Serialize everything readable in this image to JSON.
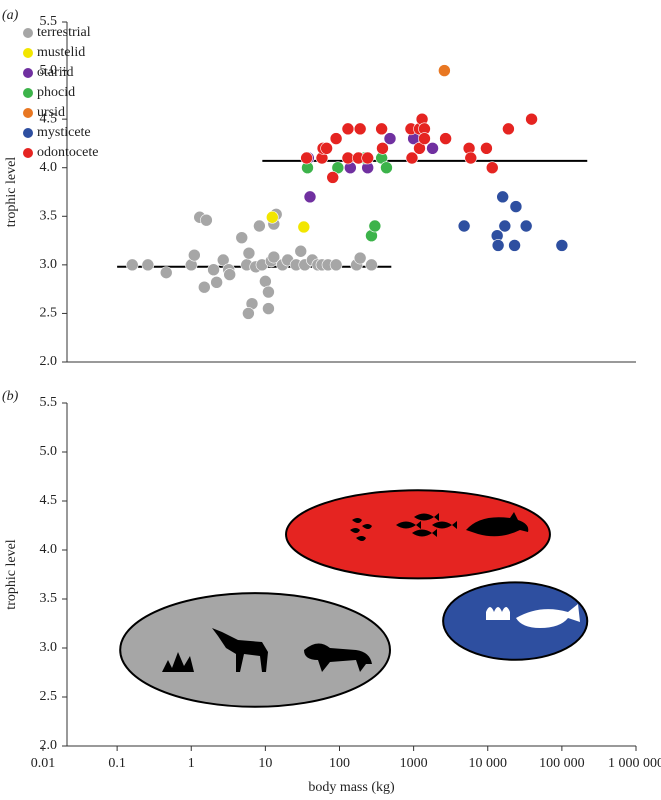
{
  "chart_data": [
    {
      "type": "scatter",
      "panel_label": "(a)",
      "y_label": "trophic level",
      "xlim": [
        0.01,
        1000000
      ],
      "log_x": true,
      "ylim": [
        2.0,
        5.5
      ],
      "yticks": [
        {
          "value": 2,
          "label": "2.0"
        },
        2.5,
        {
          "value": 3,
          "label": "3.0"
        },
        3.5,
        {
          "value": 4,
          "label": "4.0"
        },
        4.5,
        {
          "value": 5,
          "label": "5.0"
        },
        5.5
      ],
      "legend": "upper left",
      "series": [
        {
          "name": "terrestrial",
          "color": "#a6a6a6",
          "x": [
            0.16,
            0.26,
            0.46,
            1.3,
            1.6,
            1.0,
            1.1,
            1.5,
            2.0,
            2.2,
            2.7,
            3.2,
            3.3,
            4.8,
            5.6,
            6.0,
            6.6,
            5.9,
            7.4,
            8.3,
            9,
            10,
            11,
            12,
            13,
            14,
            13,
            11,
            17,
            20,
            26,
            30,
            34,
            43,
            51,
            58,
            70,
            90,
            170,
            190,
            270
          ],
          "y": [
            3.0,
            3.0,
            2.92,
            3.49,
            3.46,
            3.0,
            3.1,
            2.77,
            2.95,
            2.82,
            3.05,
            2.95,
            2.9,
            3.28,
            3.0,
            3.12,
            2.6,
            2.5,
            2.98,
            3.4,
            3.0,
            2.83,
            2.72,
            3.04,
            3.08,
            3.52,
            3.42,
            2.55,
            3.0,
            3.05,
            3.0,
            3.14,
            3.0,
            3.05,
            3.0,
            3.0,
            3.0,
            3.0,
            3.0,
            3.07,
            3.0
          ]
        },
        {
          "name": "mustelid",
          "color": "#f2e600",
          "x": [
            12.4,
            33
          ],
          "y": [
            3.49,
            3.39
          ]
        },
        {
          "name": "otariid",
          "color": "#7030a0",
          "x": [
            40,
            38,
            140,
            240,
            480,
            1000,
            1800
          ],
          "y": [
            3.7,
            4.1,
            4.0,
            4.0,
            4.3,
            4.3,
            4.2
          ]
        },
        {
          "name": "phocid",
          "color": "#3cb34a",
          "x": [
            37,
            95,
            220,
            370,
            430,
            270,
            300
          ],
          "y": [
            4.0,
            4.0,
            4.1,
            4.1,
            4.0,
            3.3,
            3.4
          ]
        },
        {
          "name": "ursid",
          "color": "#e87722",
          "x": [
            2600
          ],
          "y": [
            5.0
          ]
        },
        {
          "name": "mysticete",
          "color": "#2e4fa0",
          "x": [
            4800,
            15900,
            13400,
            13800,
            17000,
            24000,
            23000,
            33000,
            100000
          ],
          "y": [
            3.4,
            3.7,
            3.3,
            3.2,
            3.4,
            3.6,
            3.2,
            3.4,
            3.2
          ]
        },
        {
          "name": "odontocete",
          "color": "#e52421",
          "x": [
            36,
            58,
            60,
            67,
            90,
            81,
            130,
            130,
            190,
            180,
            370,
            380,
            240,
            920,
            950,
            1200,
            1300,
            1400,
            1200,
            1400,
            2700,
            5600,
            5900,
            9600,
            11500,
            19000,
            39000
          ],
          "y": [
            4.1,
            4.1,
            4.2,
            4.2,
            4.3,
            3.9,
            4.4,
            4.1,
            4.4,
            4.1,
            4.4,
            4.2,
            4.1,
            4.4,
            4.1,
            4.4,
            4.5,
            4.4,
            4.2,
            4.3,
            4.3,
            4.2,
            4.1,
            4.2,
            4.0,
            4.4,
            4.5
          ]
        }
      ],
      "mean_lines": [
        {
          "x": [
            0.1,
            500
          ],
          "y": 2.98
        },
        {
          "x": [
            9.1,
            220000
          ],
          "y": 4.07
        }
      ]
    },
    {
      "type": "ellipse",
      "panel_label": "(b)",
      "y_label": "trophic level",
      "x_label": "body mass (kg)",
      "xlim": [
        0.01,
        1000000
      ],
      "log_x": true,
      "xticks": [
        0.01,
        0.1,
        1,
        10,
        100,
        1000,
        {
          "value": 10000,
          "label": "10 000"
        },
        {
          "value": 100000,
          "label": "100 000"
        },
        {
          "value": 1000000,
          "label": "1 000 000"
        }
      ],
      "ylim": [
        2.0,
        5.5
      ],
      "yticks": [
        {
          "value": 2,
          "label": "2.0"
        },
        2.5,
        {
          "value": 3,
          "label": "3.0"
        },
        3.5,
        {
          "value": 4,
          "label": "4.0"
        },
        4.5,
        {
          "value": 5,
          "label": "5.0"
        },
        5.5
      ],
      "regions": [
        {
          "color": "#a6a6a6",
          "x": [
            0.11,
            480
          ],
          "y": [
            2.4,
            3.56
          ]
        },
        {
          "color": "#e52421",
          "x": [
            19,
            69000
          ],
          "y": [
            3.71,
            4.61
          ]
        },
        {
          "color": "#2e4fa0",
          "x": [
            2500,
            220000
          ],
          "y": [
            2.88,
            3.67
          ]
        }
      ]
    }
  ]
}
